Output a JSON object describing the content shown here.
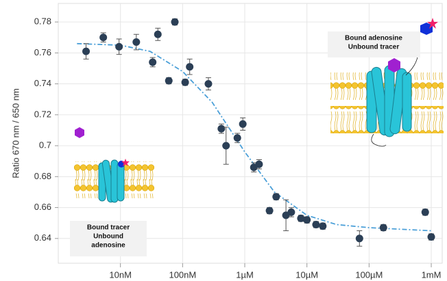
{
  "chart_data": {
    "type": "scatter",
    "y_label": "Ratio 670 nm / 650 nm",
    "xlog": true,
    "grid": true,
    "xlim": [
      1e-09,
      0.0015
    ],
    "ylim": [
      0.624,
      0.792
    ],
    "yticks": [
      0.64,
      0.66,
      0.68,
      0.7,
      0.72,
      0.74,
      0.76,
      0.78
    ],
    "xticks": [
      {
        "value": 1e-08,
        "label": "10nM"
      },
      {
        "value": 1e-07,
        "label": "100nM"
      },
      {
        "value": 1e-06,
        "label": "1µM"
      },
      {
        "value": 1e-05,
        "label": "10µM"
      },
      {
        "value": 0.0001,
        "label": "100µM"
      },
      {
        "value": 0.001,
        "label": "1mM"
      }
    ],
    "series": [
      {
        "type": "scatter",
        "color": "#2b3f56",
        "x": [
          2.8e-09,
          5.3e-09,
          9.5e-09,
          1.8e-08,
          3.3e-08,
          4e-08,
          6e-08,
          7.5e-08,
          1.1e-07,
          1.3e-07,
          2.6e-07,
          4.2e-07,
          5e-07,
          7.6e-07,
          9.3e-07,
          1.4e-06,
          1.7e-06,
          2.5e-06,
          3.2e-06,
          4.6e-06,
          5.6e-06,
          8e-06,
          1e-05,
          1.4e-05,
          1.8e-05,
          7e-05,
          0.00017,
          0.0008,
          0.001
        ],
        "values": [
          0.761,
          0.77,
          0.764,
          0.767,
          0.754,
          0.772,
          0.742,
          0.78,
          0.741,
          0.751,
          0.74,
          0.711,
          0.7,
          0.705,
          0.714,
          0.686,
          0.688,
          0.658,
          0.667,
          0.655,
          0.657,
          0.653,
          0.652,
          0.649,
          0.648,
          0.64,
          0.647,
          0.657,
          0.641
        ],
        "errors": [
          0.005,
          0.003,
          0.005,
          0.005,
          0.003,
          0.004,
          0.002,
          0.002,
          0.002,
          0.005,
          0.004,
          0.003,
          0.012,
          0.003,
          0.004,
          0.003,
          0.003,
          0.002,
          0.002,
          0.01,
          0.003,
          0.002,
          0.002,
          0.002,
          0.002,
          0.005,
          0.002,
          0.002,
          0.002
        ]
      },
      {
        "type": "line",
        "color": "#4a9fd8",
        "x": [
          2e-09,
          1e-08,
          3e-08,
          1e-07,
          3e-07,
          1e-06,
          3e-06,
          1e-05,
          3e-05,
          0.0001,
          0.001
        ],
        "values": [
          0.766,
          0.765,
          0.761,
          0.748,
          0.728,
          0.696,
          0.67,
          0.655,
          0.649,
          0.647,
          0.645
        ]
      }
    ],
    "annotations": [
      [
        "Bound adenosine",
        "Unbound tracer"
      ],
      [
        "Bound tracer",
        "Unbound",
        "adenosine"
      ]
    ]
  }
}
